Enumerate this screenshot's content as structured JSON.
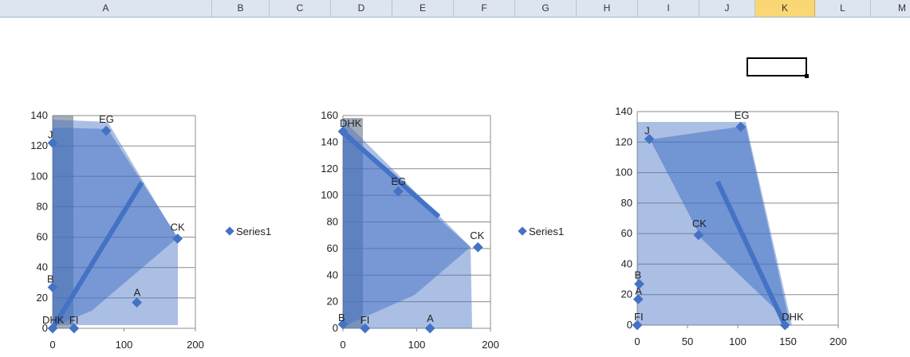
{
  "colors": {
    "marker": "#4472c4",
    "fill": "#4472c4",
    "grid": "#8c8c8c",
    "header_bg": "#dde5f0",
    "header_selected": "#f9d774"
  },
  "sheet": {
    "columns": [
      "A",
      "B",
      "C",
      "D",
      "E",
      "F",
      "G",
      "H",
      "I",
      "J",
      "K",
      "L",
      "M"
    ],
    "selected_column": "K"
  },
  "chart_data": [
    {
      "type": "scatter",
      "legend": "Series1",
      "legend_position": "right",
      "xlim": [
        0,
        200
      ],
      "ylim": [
        0,
        140
      ],
      "x_ticks": [
        "0",
        "100",
        "200"
      ],
      "y_ticks": [
        "0",
        "20",
        "40",
        "60",
        "80",
        "100",
        "120",
        "140"
      ],
      "grid": true,
      "points": [
        {
          "label": "A",
          "x": 118,
          "y": 17
        },
        {
          "label": "B",
          "x": 0,
          "y": 27
        },
        {
          "label": "CK",
          "x": 175,
          "y": 59
        },
        {
          "label": "DHK",
          "x": 0,
          "y": 0
        },
        {
          "label": "EG",
          "x": 75,
          "y": 130
        },
        {
          "label": "FI",
          "x": 30,
          "y": 0
        },
        {
          "label": "J",
          "x": 0,
          "y": 122
        }
      ],
      "trend_line": [
        [
          0,
          0
        ],
        [
          125,
          96
        ]
      ]
    },
    {
      "type": "scatter",
      "legend": "Series1",
      "legend_position": "right",
      "xlim": [
        0,
        200
      ],
      "ylim": [
        0,
        160
      ],
      "x_ticks": [
        "0",
        "100",
        "200"
      ],
      "y_ticks": [
        "0",
        "20",
        "40",
        "60",
        "80",
        "100",
        "120",
        "140",
        "160"
      ],
      "grid": true,
      "points": [
        {
          "label": "A",
          "x": 118,
          "y": 0
        },
        {
          "label": "B",
          "x": 0,
          "y": 3
        },
        {
          "label": "CK",
          "x": 183,
          "y": 61
        },
        {
          "label": "DHK",
          "x": 0,
          "y": 148
        },
        {
          "label": "EG",
          "x": 75,
          "y": 103
        },
        {
          "label": "FI",
          "x": 30,
          "y": 0
        }
      ],
      "trend_line": [
        [
          3,
          146
        ],
        [
          130,
          84
        ]
      ]
    },
    {
      "type": "scatter",
      "xlim": [
        0,
        200
      ],
      "ylim": [
        0,
        140
      ],
      "x_ticks": [
        "0",
        "50",
        "100",
        "150",
        "200"
      ],
      "y_ticks": [
        "0",
        "20",
        "40",
        "60",
        "80",
        "100",
        "120",
        "140"
      ],
      "grid": true,
      "points": [
        {
          "label": "A",
          "x": 1,
          "y": 17
        },
        {
          "label": "B",
          "x": 2,
          "y": 27
        },
        {
          "label": "CK",
          "x": 61,
          "y": 59
        },
        {
          "label": "DHK",
          "x": 147,
          "y": 0
        },
        {
          "label": "EG",
          "x": 103,
          "y": 130
        },
        {
          "label": "FI",
          "x": 0,
          "y": 0
        },
        {
          "label": "J",
          "x": 12,
          "y": 122
        }
      ],
      "trend_line": [
        [
          80,
          94
        ],
        [
          147,
          0
        ]
      ]
    }
  ]
}
